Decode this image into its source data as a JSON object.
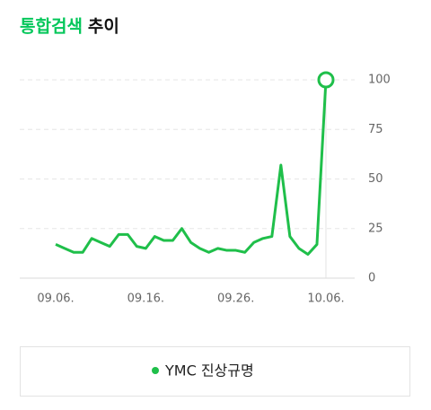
{
  "chart_data": {
    "type": "line",
    "title_highlight": "통합검색",
    "title": "추이",
    "categories": [
      "09.06.",
      null,
      null,
      null,
      null,
      null,
      null,
      null,
      null,
      null,
      "09.16.",
      null,
      null,
      null,
      null,
      null,
      null,
      null,
      null,
      null,
      "09.26.",
      null,
      null,
      null,
      null,
      null,
      null,
      null,
      null,
      null,
      "10.06."
    ],
    "series": [
      {
        "name": "YMC 진상규명",
        "color": "#1fbf4a",
        "values": [
          17,
          15,
          13,
          13,
          20,
          18,
          16,
          22,
          22,
          16,
          15,
          21,
          19,
          19,
          25,
          18,
          15,
          13,
          15,
          14,
          14,
          13,
          18,
          20,
          21,
          57,
          21,
          15,
          12,
          17,
          100
        ]
      }
    ],
    "ylim": [
      0,
      100
    ],
    "yticks": [
      0,
      25,
      50,
      75,
      100
    ],
    "grid": true,
    "title_color": "#03c75a"
  }
}
